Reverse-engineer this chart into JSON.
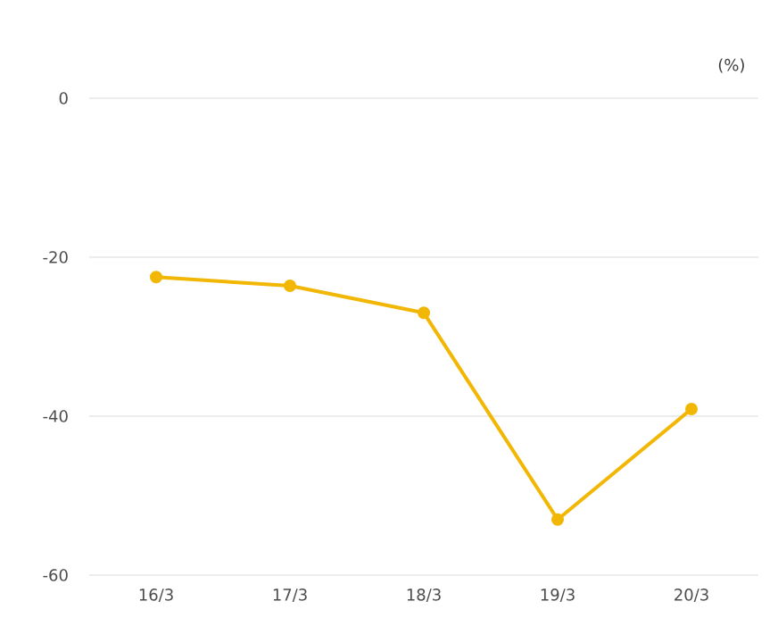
{
  "chart_data": {
    "type": "line",
    "categories": [
      "16/3",
      "17/3",
      "18/3",
      "19/3",
      "20/3"
    ],
    "series": [
      {
        "color": "#f2b705",
        "values": [
          -22.5,
          -23.6,
          -27.0,
          -53.0,
          -39.1
        ]
      }
    ],
    "ylim": [
      -60,
      0
    ],
    "yticks": [
      -60,
      -40,
      -20,
      0
    ],
    "grid": "y",
    "marker": "circle",
    "line_style": "solid",
    "annotations": [
      "(%)"
    ]
  }
}
